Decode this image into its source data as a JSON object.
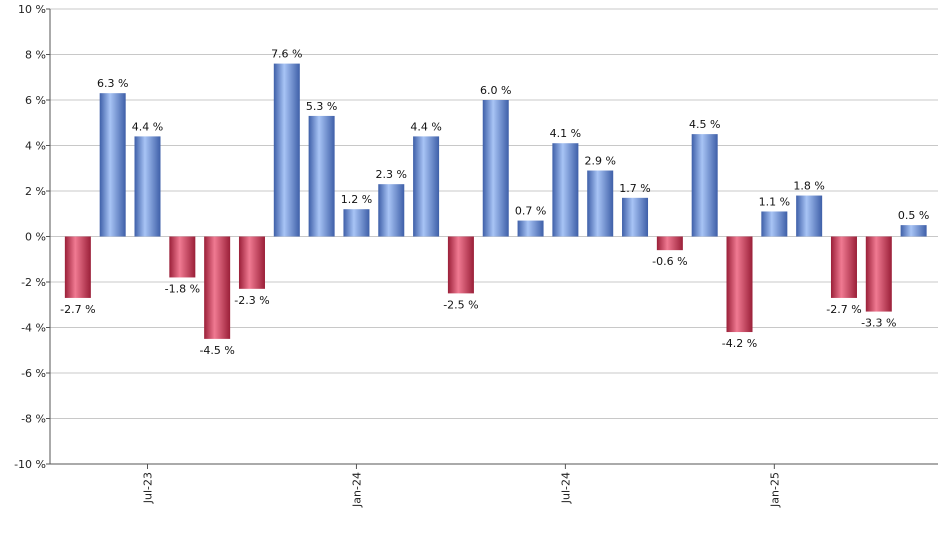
{
  "chart_data": {
    "type": "bar",
    "title": "",
    "xlabel": "",
    "ylabel": "",
    "ylim": [
      -10,
      10
    ],
    "y_ticks": [
      -10,
      -8,
      -6,
      -4,
      -2,
      0,
      2,
      4,
      6,
      8,
      10
    ],
    "y_tick_suffix": " %",
    "grid": true,
    "x_tick_labels": [
      {
        "label": "Jul-23",
        "index": 2
      },
      {
        "label": "Jan-24",
        "index": 8
      },
      {
        "label": "Jul-24",
        "index": 14
      },
      {
        "label": "Jan-25",
        "index": 20
      }
    ],
    "values": [
      -2.7,
      6.3,
      4.4,
      -1.8,
      -4.5,
      -2.3,
      7.6,
      5.3,
      1.2,
      2.3,
      4.4,
      -2.5,
      6.0,
      0.7,
      4.1,
      2.9,
      1.7,
      -0.6,
      4.5,
      -4.2,
      1.1,
      1.8,
      -2.7,
      -3.3,
      0.5
    ],
    "colors": {
      "positive": "#6f92d8",
      "negative": "#c23a57"
    }
  }
}
